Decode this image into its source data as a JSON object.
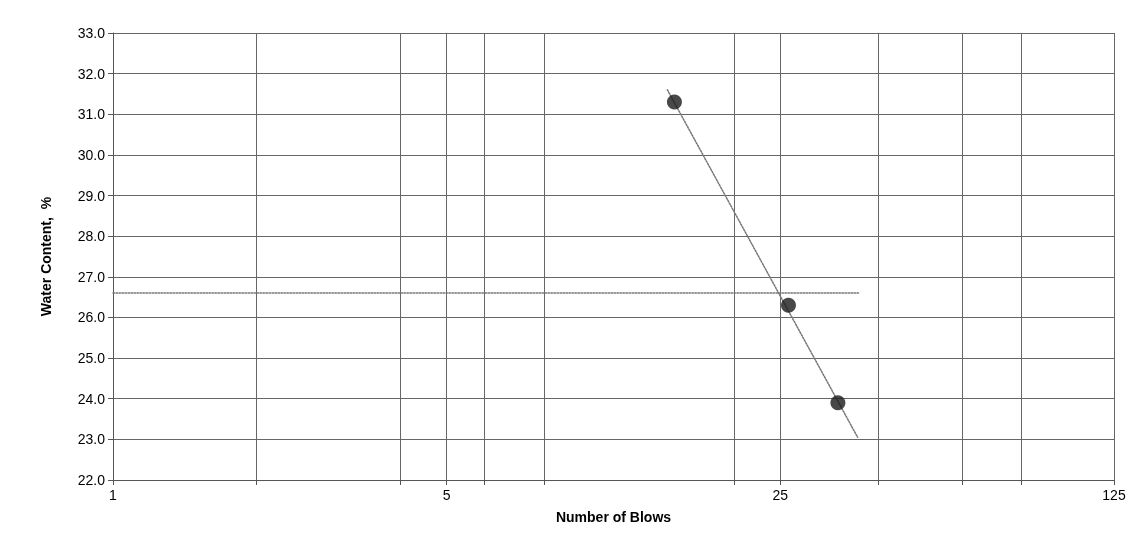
{
  "chart_data": {
    "type": "scatter",
    "xlabel": "Number of Blows",
    "ylabel": "Water Content,  %",
    "log": "x",
    "grid": true,
    "marker": "circle",
    "xlim": [
      1,
      125
    ],
    "ylim": [
      22,
      33
    ],
    "xticks": [
      1,
      {
        "value": 2,
        "label": null
      },
      {
        "value": 4,
        "label": null
      },
      5,
      {
        "value": 6,
        "label": null
      },
      {
        "value": 8,
        "label": null
      },
      {
        "value": 20,
        "label": null
      },
      25,
      {
        "value": 40,
        "label": null
      },
      {
        "value": 60,
        "label": null
      },
      {
        "value": 80,
        "label": null
      },
      125
    ],
    "yticks": [
      {
        "value": 22,
        "label": "22.0"
      },
      {
        "value": 23,
        "label": "23.0"
      },
      {
        "value": 24,
        "label": "24.0"
      },
      {
        "value": 25,
        "label": "25.0"
      },
      {
        "value": 26,
        "label": "26.0"
      },
      {
        "value": 27,
        "label": "27.0"
      },
      {
        "value": 28,
        "label": "28.0"
      },
      {
        "value": 29,
        "label": "29.0"
      },
      {
        "value": 30,
        "label": "30.0"
      },
      {
        "value": 31,
        "label": "31.0"
      },
      {
        "value": 32,
        "label": "32.0"
      },
      {
        "value": 33,
        "label": "33.0"
      }
    ],
    "series": [
      {
        "color": "#1a1a1a",
        "x": [
          15,
          26,
          33
        ],
        "values": [
          31.3,
          26.3,
          23.9
        ]
      },
      {
        "type": "line",
        "color": "#777777",
        "line_style": "dotted",
        "marker": "none",
        "x": [
          14.5,
          36.3
        ],
        "values": [
          31.6,
          23.05
        ]
      },
      {
        "type": "line",
        "color": "#777777",
        "line_style": "dotted",
        "marker": "none",
        "x": [
          1,
          36.5
        ],
        "values": [
          26.6,
          26.6
        ]
      }
    ]
  }
}
